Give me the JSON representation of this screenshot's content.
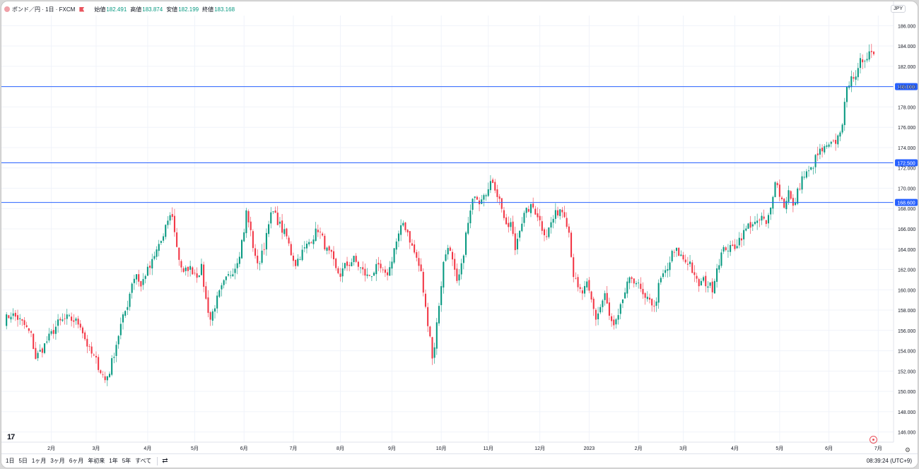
{
  "legend": {
    "symbol": "ポンド／円 · 1日 · FXCM",
    "open_label": "始値",
    "open": "182.491",
    "high_label": "高値",
    "high": "183.874",
    "low_label": "安値",
    "low": "182.199",
    "close_label": "終値",
    "close": "183.168"
  },
  "currency": "JPY",
  "time_ranges": [
    "1日",
    "5日",
    "1ヶ月",
    "3ヶ月",
    "6ヶ月",
    "年初来",
    "1年",
    "5年",
    "すべて"
  ],
  "clock": "08:39:24 (UTC+9)",
  "logo_text": "17",
  "icons": [
    "calendar-icon",
    "gear-icon",
    "target-icon",
    "tradingview-logo"
  ],
  "colors": {
    "up": "#089981",
    "down": "#f23645",
    "hline": "#2962ff",
    "grid": "#f0f3fa"
  },
  "chart_data": {
    "type": "candlestick",
    "ylim": [
      145,
      187
    ],
    "y_ticks": [
      "146.000",
      "148.000",
      "150.000",
      "152.000",
      "154.000",
      "156.000",
      "158.000",
      "160.000",
      "162.000",
      "164.000",
      "166.000",
      "168.000",
      "170.000",
      "172.000",
      "174.000",
      "176.000",
      "178.000",
      "180.000",
      "182.000",
      "184.000",
      "186.000"
    ],
    "x_ticks": [
      {
        "label": "2月",
        "day": 21
      },
      {
        "label": "3月",
        "day": 41
      },
      {
        "label": "4月",
        "day": 64
      },
      {
        "label": "5月",
        "day": 85
      },
      {
        "label": "6月",
        "day": 107
      },
      {
        "label": "7月",
        "day": 129
      },
      {
        "label": "8月",
        "day": 150
      },
      {
        "label": "9月",
        "day": 173
      },
      {
        "label": "10月",
        "day": 195
      },
      {
        "label": "11月",
        "day": 216
      },
      {
        "label": "12月",
        "day": 239
      },
      {
        "label": "2023",
        "day": 261
      },
      {
        "label": "2月",
        "day": 283
      },
      {
        "label": "3月",
        "day": 303
      },
      {
        "label": "4月",
        "day": 326
      },
      {
        "label": "5月",
        "day": 346
      },
      {
        "label": "6月",
        "day": 368
      },
      {
        "label": "7月",
        "day": 390
      }
    ],
    "horizontal_lines": [
      {
        "value": 180.0,
        "label": "180.000"
      },
      {
        "value": 172.5,
        "label": "172.500"
      },
      {
        "value": 168.6,
        "label": "168.600"
      }
    ],
    "anchors": [
      [
        0,
        157.0
      ],
      [
        3,
        157.6
      ],
      [
        6,
        157.2
      ],
      [
        9,
        156.5
      ],
      [
        12,
        155.5
      ],
      [
        14,
        153.3
      ],
      [
        17,
        154.2
      ],
      [
        20,
        155.3
      ],
      [
        24,
        156.7
      ],
      [
        28,
        157.2
      ],
      [
        31,
        157.0
      ],
      [
        34,
        156.6
      ],
      [
        36,
        155.2
      ],
      [
        38,
        154.0
      ],
      [
        41,
        153.0
      ],
      [
        43,
        152.0
      ],
      [
        45,
        151.1
      ],
      [
        47,
        152.0
      ],
      [
        49,
        153.8
      ],
      [
        52,
        156.5
      ],
      [
        55,
        158.6
      ],
      [
        57,
        160.8
      ],
      [
        59,
        161.6
      ],
      [
        61,
        160.3
      ],
      [
        63,
        161.6
      ],
      [
        65,
        162.2
      ],
      [
        67,
        163.2
      ],
      [
        69,
        164.5
      ],
      [
        71,
        165.1
      ],
      [
        73,
        166.9
      ],
      [
        75,
        167.4
      ],
      [
        76,
        165.6
      ],
      [
        78,
        163.1
      ],
      [
        80,
        161.5
      ],
      [
        82,
        162.2
      ],
      [
        84,
        161.9
      ],
      [
        86,
        161.5
      ],
      [
        88,
        162.1
      ],
      [
        90,
        159.0
      ],
      [
        92,
        157.1
      ],
      [
        94,
        158.5
      ],
      [
        96,
        159.6
      ],
      [
        98,
        160.6
      ],
      [
        100,
        161.3
      ],
      [
        103,
        162.3
      ],
      [
        105,
        163.7
      ],
      [
        107,
        165.9
      ],
      [
        108,
        167.6
      ],
      [
        110,
        165.7
      ],
      [
        112,
        163.0
      ],
      [
        114,
        162.7
      ],
      [
        116,
        164.3
      ],
      [
        118,
        166.9
      ],
      [
        120,
        167.6
      ],
      [
        122,
        166.8
      ],
      [
        124,
        165.9
      ],
      [
        126,
        165.2
      ],
      [
        128,
        163.6
      ],
      [
        130,
        162.6
      ],
      [
        132,
        163.4
      ],
      [
        134,
        164.0
      ],
      [
        136,
        164.7
      ],
      [
        138,
        165.3
      ],
      [
        140,
        166.0
      ],
      [
        142,
        165.0
      ],
      [
        144,
        163.8
      ],
      [
        146,
        163.3
      ],
      [
        148,
        161.9
      ],
      [
        150,
        161.5
      ],
      [
        152,
        162.3
      ],
      [
        154,
        162.6
      ],
      [
        156,
        163.0
      ],
      [
        158,
        162.4
      ],
      [
        160,
        161.8
      ],
      [
        162,
        161.3
      ],
      [
        164,
        161.6
      ],
      [
        166,
        162.1
      ],
      [
        168,
        162.0
      ],
      [
        170,
        161.3
      ],
      [
        172,
        162.1
      ],
      [
        174,
        164.1
      ],
      [
        176,
        165.3
      ],
      [
        178,
        166.6
      ],
      [
        180,
        165.7
      ],
      [
        182,
        164.2
      ],
      [
        184,
        163.1
      ],
      [
        186,
        161.6
      ],
      [
        188,
        158.1
      ],
      [
        190,
        155.6
      ],
      [
        191,
        153.2
      ],
      [
        192,
        154.6
      ],
      [
        194,
        158.6
      ],
      [
        196,
        162.6
      ],
      [
        198,
        164.5
      ],
      [
        200,
        162.7
      ],
      [
        202,
        160.5
      ],
      [
        204,
        162.2
      ],
      [
        206,
        165.4
      ],
      [
        208,
        167.6
      ],
      [
        210,
        169.6
      ],
      [
        212,
        168.8
      ],
      [
        214,
        169.7
      ],
      [
        216,
        169.8
      ],
      [
        218,
        170.8
      ],
      [
        220,
        169.4
      ],
      [
        222,
        168.2
      ],
      [
        224,
        166.0
      ],
      [
        226,
        166.5
      ],
      [
        228,
        164.0
      ],
      [
        230,
        166.2
      ],
      [
        232,
        167.3
      ],
      [
        234,
        168.0
      ],
      [
        236,
        168.1
      ],
      [
        238,
        167.4
      ],
      [
        240,
        166.1
      ],
      [
        242,
        165.4
      ],
      [
        244,
        166.6
      ],
      [
        246,
        167.4
      ],
      [
        248,
        168.0
      ],
      [
        250,
        167.6
      ],
      [
        252,
        165.7
      ],
      [
        254,
        161.5
      ],
      [
        256,
        160.0
      ],
      [
        258,
        159.7
      ],
      [
        260,
        160.4
      ],
      [
        262,
        158.9
      ],
      [
        264,
        157.2
      ],
      [
        266,
        158.3
      ],
      [
        268,
        159.6
      ],
      [
        270,
        157.3
      ],
      [
        272,
        156.3
      ],
      [
        274,
        157.2
      ],
      [
        276,
        159.1
      ],
      [
        278,
        160.4
      ],
      [
        280,
        161.2
      ],
      [
        282,
        160.8
      ],
      [
        284,
        159.9
      ],
      [
        286,
        158.8
      ],
      [
        288,
        159.3
      ],
      [
        290,
        158.1
      ],
      [
        292,
        160.3
      ],
      [
        294,
        161.5
      ],
      [
        296,
        162.0
      ],
      [
        298,
        163.5
      ],
      [
        300,
        163.8
      ],
      [
        302,
        163.3
      ],
      [
        304,
        162.8
      ],
      [
        306,
        162.7
      ],
      [
        308,
        161.1
      ],
      [
        310,
        160.5
      ],
      [
        312,
        160.9
      ],
      [
        314,
        160.5
      ],
      [
        316,
        160.2
      ],
      [
        318,
        162.2
      ],
      [
        320,
        163.5
      ],
      [
        322,
        164.2
      ],
      [
        324,
        164.0
      ],
      [
        326,
        164.3
      ],
      [
        328,
        165.0
      ],
      [
        330,
        165.6
      ],
      [
        332,
        166.3
      ],
      [
        334,
        166.6
      ],
      [
        336,
        166.4
      ],
      [
        338,
        167.2
      ],
      [
        340,
        166.3
      ],
      [
        342,
        168.0
      ],
      [
        344,
        171.0
      ],
      [
        346,
        169.4
      ],
      [
        348,
        168.3
      ],
      [
        350,
        169.7
      ],
      [
        352,
        168.0
      ],
      [
        354,
        169.6
      ],
      [
        356,
        171.0
      ],
      [
        358,
        171.4
      ],
      [
        360,
        171.8
      ],
      [
        362,
        172.9
      ],
      [
        364,
        173.6
      ],
      [
        366,
        173.8
      ],
      [
        368,
        174.1
      ],
      [
        370,
        174.3
      ],
      [
        372,
        175.0
      ],
      [
        374,
        176.6
      ],
      [
        376,
        179.6
      ],
      [
        378,
        181.4
      ],
      [
        380,
        180.6
      ],
      [
        382,
        182.4
      ],
      [
        384,
        182.8
      ],
      [
        386,
        183.5
      ],
      [
        388,
        183.2
      ]
    ],
    "total_days": 388
  }
}
